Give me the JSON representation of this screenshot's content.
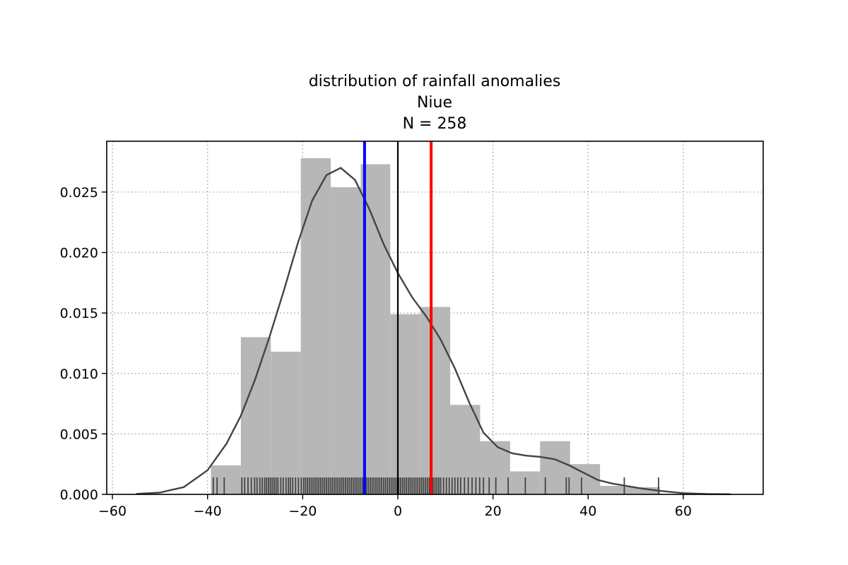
{
  "chart_data": {
    "type": "histogram",
    "title_lines": [
      "distribution of rainfall anomalies",
      "Niue",
      "N = 258"
    ],
    "xlim": [
      -61.2,
      76.8
    ],
    "ylim": [
      0,
      0.0292
    ],
    "xticks": [
      -60,
      -40,
      -20,
      0,
      20,
      40,
      60
    ],
    "xtick_labels": [
      "−60",
      "−40",
      "−20",
      "0",
      "20",
      "40",
      "60"
    ],
    "yticks": [
      0.0,
      0.005,
      0.01,
      0.015,
      0.02,
      0.025
    ],
    "ytick_labels": [
      "0.000",
      "0.005",
      "0.010",
      "0.015",
      "0.020",
      "0.025"
    ],
    "grid": true,
    "histogram": {
      "color": "#b7b7b7",
      "bins": [
        {
          "x0": -39.3,
          "x1": -33.0,
          "density": 0.0024
        },
        {
          "x0": -33.0,
          "x1": -26.7,
          "density": 0.013
        },
        {
          "x0": -26.7,
          "x1": -20.4,
          "density": 0.0118
        },
        {
          "x0": -20.4,
          "x1": -14.1,
          "density": 0.0278
        },
        {
          "x0": -14.1,
          "x1": -7.8,
          "density": 0.0254
        },
        {
          "x0": -7.8,
          "x1": -1.6,
          "density": 0.0273
        },
        {
          "x0": -1.6,
          "x1": 4.7,
          "density": 0.0149
        },
        {
          "x0": 4.7,
          "x1": 11.0,
          "density": 0.0155
        },
        {
          "x0": 11.0,
          "x1": 17.3,
          "density": 0.0074
        },
        {
          "x0": 17.3,
          "x1": 23.6,
          "density": 0.0044
        },
        {
          "x0": 23.6,
          "x1": 29.9,
          "density": 0.0019
        },
        {
          "x0": 29.9,
          "x1": 36.2,
          "density": 0.0044
        },
        {
          "x0": 36.2,
          "x1": 42.5,
          "density": 0.0025
        },
        {
          "x0": 42.5,
          "x1": 48.8,
          "density": 0.0007
        },
        {
          "x0": 48.8,
          "x1": 55.1,
          "density": 0.0006
        }
      ]
    },
    "kde": {
      "color": "#444444",
      "points": [
        [
          -55,
          4e-05
        ],
        [
          -50,
          0.00015
        ],
        [
          -45,
          0.0006
        ],
        [
          -40,
          0.002
        ],
        [
          -36,
          0.0042
        ],
        [
          -33,
          0.0065
        ],
        [
          -30,
          0.0095
        ],
        [
          -27,
          0.013
        ],
        [
          -24,
          0.0168
        ],
        [
          -21,
          0.0208
        ],
        [
          -18,
          0.0243
        ],
        [
          -15,
          0.0264
        ],
        [
          -12,
          0.027
        ],
        [
          -9,
          0.026
        ],
        [
          -6,
          0.0236
        ],
        [
          -3,
          0.0207
        ],
        [
          0,
          0.0183
        ],
        [
          3,
          0.0163
        ],
        [
          6,
          0.0147
        ],
        [
          9,
          0.0128
        ],
        [
          12,
          0.0104
        ],
        [
          15,
          0.0076
        ],
        [
          18,
          0.0051
        ],
        [
          21,
          0.0039
        ],
        [
          24,
          0.0034
        ],
        [
          27,
          0.0032
        ],
        [
          30,
          0.0031
        ],
        [
          33,
          0.0029
        ],
        [
          36,
          0.0024
        ],
        [
          39,
          0.0018
        ],
        [
          42,
          0.0012
        ],
        [
          45,
          0.0009
        ],
        [
          48,
          0.0007
        ],
        [
          51,
          0.0005
        ],
        [
          55,
          0.0003
        ],
        [
          60,
          0.0001
        ],
        [
          65,
          3e-05
        ],
        [
          70,
          1e-05
        ]
      ]
    },
    "rug": {
      "color": "#444444",
      "values": [
        -38.8,
        -38.0,
        -36.5,
        -32.8,
        -32.2,
        -31.5,
        -30.8,
        -30.1,
        -29.6,
        -29.0,
        -28.5,
        -28.0,
        -27.6,
        -27.2,
        -26.8,
        -26.4,
        -26.0,
        -25.6,
        -25.2,
        -24.6,
        -24.1,
        -23.5,
        -23.0,
        -22.6,
        -22.1,
        -21.5,
        -20.9,
        -20.3,
        -19.8,
        -19.4,
        -19.0,
        -18.6,
        -18.2,
        -17.8,
        -17.4,
        -17.0,
        -16.6,
        -16.2,
        -15.8,
        -15.4,
        -15.0,
        -14.6,
        -14.2,
        -13.8,
        -13.4,
        -13.0,
        -12.6,
        -12.2,
        -11.8,
        -11.4,
        -11.0,
        -10.6,
        -10.2,
        -9.8,
        -9.4,
        -9.0,
        -8.6,
        -8.2,
        -7.8,
        -7.4,
        -7.0,
        -6.6,
        -6.2,
        -5.8,
        -5.4,
        -5.0,
        -4.6,
        -4.2,
        -3.8,
        -3.4,
        -3.0,
        -2.6,
        -2.2,
        -1.8,
        -1.4,
        -1.0,
        -0.6,
        -0.2,
        0.2,
        0.6,
        1.0,
        1.4,
        1.8,
        2.2,
        2.6,
        3.0,
        3.4,
        3.8,
        4.2,
        4.6,
        5.0,
        5.4,
        5.8,
        6.2,
        6.6,
        7.0,
        7.4,
        7.8,
        8.2,
        8.6,
        9.0,
        9.6,
        10.2,
        10.8,
        11.4,
        12.0,
        12.6,
        13.2,
        14.0,
        14.8,
        15.6,
        16.4,
        17.2,
        18.0,
        19.2,
        20.6,
        23.2,
        26.8,
        31.0,
        35.4,
        36.0,
        38.6,
        47.6,
        54.8
      ]
    },
    "vlines": [
      {
        "x": -7.0,
        "color": "#0000ff",
        "width": 4
      },
      {
        "x": 0.0,
        "color": "#000000",
        "width": 2.2
      },
      {
        "x": 7.0,
        "color": "#ff0000",
        "width": 4
      }
    ]
  }
}
